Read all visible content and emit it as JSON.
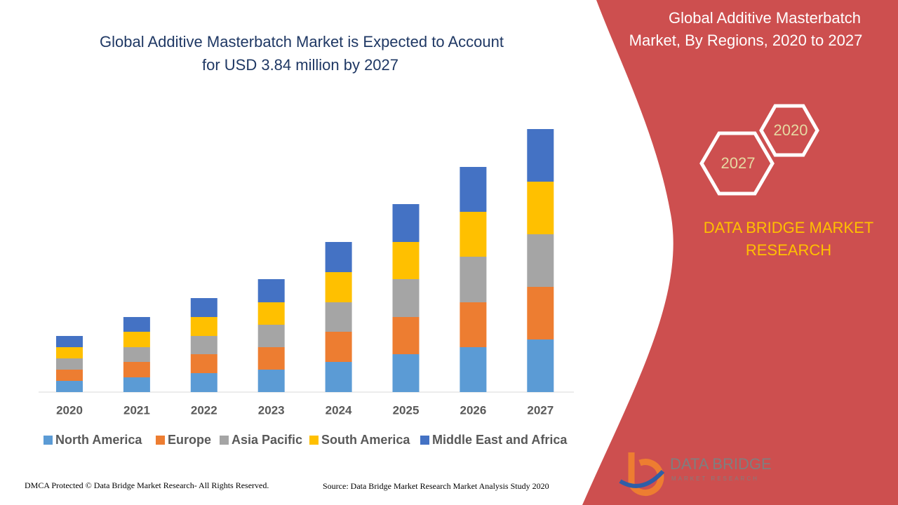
{
  "chart_data": {
    "type": "stacked-bar",
    "title": [
      "Global Additive Masterbatch Market is Expected to Account",
      "for USD 3.84 million by 2027"
    ],
    "categories": [
      "2020",
      "2021",
      "2022",
      "2023",
      "2024",
      "2025",
      "2026",
      "2027"
    ],
    "series": [
      {
        "name": "North America",
        "color": "#5b9bd5",
        "values": [
          16,
          21,
          27,
          32,
          43,
          54,
          64,
          75
        ]
      },
      {
        "name": "Europe",
        "color": "#ed7d31",
        "values": [
          16,
          22,
          27,
          32,
          43,
          53,
          64,
          75
        ]
      },
      {
        "name": "Asia Pacific",
        "color": "#a5a5a5",
        "values": [
          16,
          21,
          26,
          32,
          42,
          54,
          65,
          75
        ]
      },
      {
        "name": "South America",
        "color": "#ffc000",
        "values": [
          16,
          22,
          27,
          32,
          43,
          53,
          64,
          75
        ]
      },
      {
        "name": "Middle East and Africa",
        "color": "#4472c4",
        "values": [
          16,
          21,
          27,
          33,
          43,
          54,
          64,
          75
        ]
      }
    ],
    "ylim": [
      0,
      375
    ],
    "legend": "bottom"
  },
  "side_panel": {
    "title": [
      "Global Additive Masterbatch",
      "Market, By Regions, 2020 to 2027"
    ],
    "hexagons": [
      "2020",
      "2027"
    ],
    "brand": [
      "DATA BRIDGE MARKET",
      "RESEARCH"
    ]
  },
  "logo": {
    "name": "DATA BRIDGE",
    "tagline": "MARKET RESEARCH"
  },
  "footer": {
    "copyright": "DMCA Protected © Data Bridge Market Research- All Rights Reserved.",
    "source": "Source: Data Bridge Market Research Market Analysis Study 2020"
  }
}
